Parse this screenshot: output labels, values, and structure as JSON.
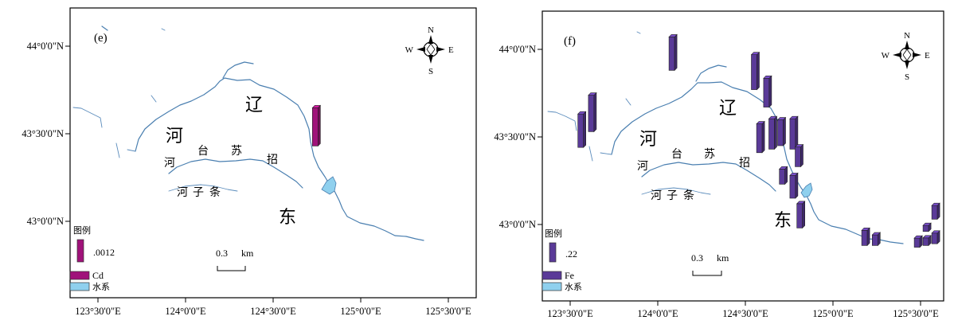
{
  "panels": [
    {
      "id": "e",
      "panel_label": "(e)",
      "lat_labels": [
        "44°0'0\"N",
        "43°30'0\"N",
        "43°0'0\"N"
      ],
      "lon_labels": [
        "123°30'0\"E",
        "124°0'0\"E",
        "124°30'0\"E",
        "125°0'0\"E",
        "125°30'0\"E"
      ],
      "compass": {
        "n": "N",
        "s": "S",
        "e": "E",
        "w": "W"
      },
      "place_names": {
        "liao": "辽",
        "he": "河",
        "dong": "东",
        "zhao": "招",
        "su": "苏",
        "tai": "台",
        "he2": "河",
        "tiao": "条",
        "zi": "子",
        "he3": "河"
      },
      "legend_title": "图例",
      "legend_scale_value": ".0012",
      "legend_element": "Cd",
      "legend_water": "水系",
      "scale_value": "0.3",
      "scale_unit": "km",
      "bar_color": "#a0127a",
      "bars": [
        {
          "lon": 124.74,
          "lat": 43.43,
          "value": 0.0012
        }
      ]
    },
    {
      "id": "f",
      "panel_label": "(f)",
      "lat_labels": [
        "44°0'0\"N",
        "43°30'0\"N",
        "43°0'0\"N"
      ],
      "lon_labels": [
        "123°30'0\"E",
        "124°0'0\"E",
        "124°30'0\"E",
        "125°0'0\"E",
        "125°30'0\"E"
      ],
      "compass": {
        "n": "N",
        "s": "S",
        "e": "E",
        "w": "W"
      },
      "place_names": {
        "liao": "辽",
        "he": "河",
        "dong": "东",
        "zhao": "招",
        "su": "苏",
        "tai": "台",
        "he2": "河",
        "tiao": "条",
        "zi": "子",
        "he3": "河"
      },
      "legend_title": "图例",
      "legend_scale_value": ".22",
      "legend_element": "Fe",
      "legend_water": "水系",
      "scale_value": "0.3",
      "scale_unit": "km",
      "bar_color": "#5a3a98",
      "bars": [
        {
          "lon": 123.56,
          "lat": 43.44,
          "value": 0.22
        },
        {
          "lon": 123.62,
          "lat": 43.53,
          "value": 0.24
        },
        {
          "lon": 124.08,
          "lat": 43.88,
          "value": 0.22
        },
        {
          "lon": 124.55,
          "lat": 43.77,
          "value": 0.23
        },
        {
          "lon": 124.62,
          "lat": 43.67,
          "value": 0.19
        },
        {
          "lon": 124.58,
          "lat": 43.41,
          "value": 0.19
        },
        {
          "lon": 124.65,
          "lat": 43.43,
          "value": 0.2
        },
        {
          "lon": 124.7,
          "lat": 43.45,
          "value": 0.17
        },
        {
          "lon": 124.77,
          "lat": 43.43,
          "value": 0.2
        },
        {
          "lon": 124.8,
          "lat": 43.33,
          "value": 0.13
        },
        {
          "lon": 124.71,
          "lat": 43.23,
          "value": 0.1
        },
        {
          "lon": 124.77,
          "lat": 43.15,
          "value": 0.15
        },
        {
          "lon": 124.81,
          "lat": 42.98,
          "value": 0.16
        },
        {
          "lon": 125.18,
          "lat": 42.88,
          "value": 0.1
        },
        {
          "lon": 125.24,
          "lat": 42.88,
          "value": 0.07
        },
        {
          "lon": 125.48,
          "lat": 42.87,
          "value": 0.06
        },
        {
          "lon": 125.53,
          "lat": 42.88,
          "value": 0.05
        },
        {
          "lon": 125.58,
          "lat": 42.89,
          "value": 0.07
        },
        {
          "lon": 125.53,
          "lat": 42.96,
          "value": 0.04
        },
        {
          "lon": 125.58,
          "lat": 43.03,
          "value": 0.09
        }
      ]
    }
  ]
}
